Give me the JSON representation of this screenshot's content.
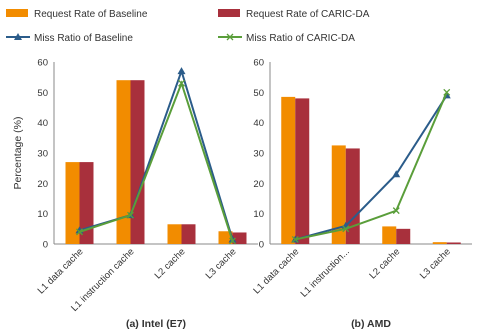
{
  "legend": {
    "items": [
      {
        "label": "Request Rate of Baseline",
        "color": "#f28c00",
        "kind": "bar"
      },
      {
        "label": "Request Rate of CARIC-DA",
        "color": "#a8303c",
        "kind": "bar"
      },
      {
        "label": "Miss Ratio of Baseline",
        "color": "#2b5c8a",
        "kind": "line"
      },
      {
        "label": "Miss Ratio of CARIC-DA",
        "color": "#5a9e3a",
        "kind": "line"
      }
    ]
  },
  "chart_data": [
    {
      "type": "bar",
      "title": "(a) Intel (E7)",
      "ylabel": "Percentage (%)",
      "ylim": [
        0,
        60
      ],
      "yticks": [
        0,
        10,
        20,
        30,
        40,
        50,
        60
      ],
      "categories": [
        "L1 data cache",
        "L1 instruction cache",
        "L2 cache",
        "L3 cache"
      ],
      "series": [
        {
          "name": "Request Rate of Baseline",
          "type": "bar",
          "color": "#f28c00",
          "values": [
            27,
            54,
            6.5,
            4.2
          ]
        },
        {
          "name": "Request Rate of CARIC-DA",
          "type": "bar",
          "color": "#a8303c",
          "values": [
            27,
            54,
            6.5,
            3.8
          ]
        },
        {
          "name": "Miss Ratio of Baseline",
          "type": "line",
          "marker": "triangle",
          "color": "#2b5c8a",
          "values": [
            4.5,
            9.5,
            57,
            1.5
          ]
        },
        {
          "name": "Miss Ratio of CARIC-DA",
          "type": "line",
          "marker": "x",
          "color": "#5a9e3a",
          "values": [
            4,
            9.5,
            53,
            1
          ]
        }
      ]
    },
    {
      "type": "bar",
      "title": "(b) AMD",
      "ylabel": "",
      "ylim": [
        0,
        60
      ],
      "yticks": [
        0,
        10,
        20,
        30,
        40,
        50,
        60
      ],
      "categories": [
        "L1 data cache",
        "L1 instruction...",
        "L2 cache",
        "L3 cache"
      ],
      "series": [
        {
          "name": "Request Rate of Baseline",
          "type": "bar",
          "color": "#f28c00",
          "values": [
            48.5,
            32.5,
            5.8,
            0.6
          ]
        },
        {
          "name": "Request Rate of CARIC-DA",
          "type": "bar",
          "color": "#a8303c",
          "values": [
            48,
            31.5,
            5,
            0.5
          ]
        },
        {
          "name": "Miss Ratio of Baseline",
          "type": "line",
          "marker": "triangle",
          "color": "#2b5c8a",
          "values": [
            1.5,
            6,
            23,
            49
          ]
        },
        {
          "name": "Miss Ratio of CARIC-DA",
          "type": "line",
          "marker": "x",
          "color": "#5a9e3a",
          "values": [
            1.5,
            5,
            11,
            50
          ]
        }
      ]
    }
  ]
}
